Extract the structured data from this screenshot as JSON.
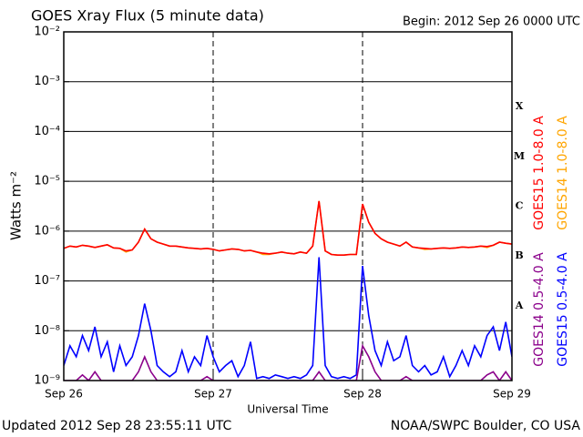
{
  "chart_data": {
    "type": "line",
    "title": "GOES Xray Flux (5 minute data)",
    "subtitle": "Begin:  2012 Sep 26 0000 UTC",
    "x_label": "Universal Time",
    "y_label": "Watts m⁻²",
    "footer_left": "Updated 2012 Sep 28 23:55:11 UTC",
    "footer_right": "NOAA/SWPC Boulder, CO USA",
    "yscale": "log",
    "grid": true,
    "ylim": [
      1e-09,
      0.01
    ],
    "yticks": [
      {
        "value": 1e-09,
        "label": "10⁻⁹"
      },
      {
        "value": 1e-08,
        "label": "10⁻⁸"
      },
      {
        "value": 1e-07,
        "label": "10⁻⁷"
      },
      {
        "value": 1e-06,
        "label": "10⁻⁶"
      },
      {
        "value": 1e-05,
        "label": "10⁻⁵"
      },
      {
        "value": 0.0001,
        "label": "10⁻⁴"
      },
      {
        "value": 0.001,
        "label": "10⁻³"
      },
      {
        "value": 0.01,
        "label": "10⁻²"
      }
    ],
    "xlim": [
      0,
      72
    ],
    "xticks": [
      {
        "value": 0,
        "label": "Sep 26"
      },
      {
        "value": 24,
        "label": "Sep 27"
      },
      {
        "value": 48,
        "label": "Sep 28"
      },
      {
        "value": 72,
        "label": "Sep 29"
      }
    ],
    "flare_classes": [
      {
        "label": "A",
        "value": 1e-08
      },
      {
        "label": "B",
        "value": 1e-07
      },
      {
        "label": "C",
        "value": 1e-06
      },
      {
        "label": "M",
        "value": 1e-05
      },
      {
        "label": "X",
        "value": 0.0001
      }
    ],
    "x": [
      0,
      1,
      2,
      3,
      4,
      5,
      6,
      7,
      8,
      9,
      10,
      11,
      12,
      13,
      14,
      15,
      16,
      17,
      18,
      19,
      20,
      21,
      22,
      23,
      24,
      25,
      26,
      27,
      28,
      29,
      30,
      31,
      32,
      33,
      34,
      35,
      36,
      37,
      38,
      39,
      40,
      41,
      42,
      43,
      44,
      45,
      46,
      47,
      48,
      49,
      50,
      51,
      52,
      53,
      54,
      55,
      56,
      57,
      58,
      59,
      60,
      61,
      62,
      63,
      64,
      65,
      66,
      67,
      68,
      69,
      70,
      71,
      72
    ],
    "series": [
      {
        "name": "GOES14 1.0-8.0 A",
        "color": "#ffa500",
        "legend_group": "long",
        "values": [
          4.5e-07,
          5e-07,
          4.8e-07,
          5.2e-07,
          5e-07,
          4.7e-07,
          5e-07,
          5.3e-07,
          4.6e-07,
          4.5e-07,
          3.8e-07,
          4.2e-07,
          6e-07,
          1.1e-06,
          7e-07,
          6e-07,
          5.5e-07,
          5e-07,
          5e-07,
          4.8e-07,
          4.6e-07,
          4.5e-07,
          4.4e-07,
          4.5e-07,
          4.3e-07,
          4e-07,
          4.2e-07,
          4.4e-07,
          4.3e-07,
          4e-07,
          4.1e-07,
          3.8e-07,
          3.4e-07,
          3.4e-07,
          3.6e-07,
          3.8e-07,
          3.6e-07,
          3.5e-07,
          3.8e-07,
          3.6e-07,
          5e-07,
          4e-06,
          4e-07,
          3.4e-07,
          3.3e-07,
          3.3e-07,
          3.4e-07,
          3.4e-07,
          3.5e-06,
          1.5e-06,
          9e-07,
          7e-07,
          6e-07,
          5.5e-07,
          5e-07,
          6e-07,
          4.8e-07,
          4.6e-07,
          4.3e-07,
          4.4e-07,
          4.5e-07,
          4.6e-07,
          4.5e-07,
          4.6e-07,
          4.8e-07,
          4.7e-07,
          4.8e-07,
          5e-07,
          4.7e-07,
          5.2e-07,
          6e-07,
          5.7e-07,
          5.5e-07
        ]
      },
      {
        "name": "GOES15 1.0-8.0 A",
        "color": "#ff0000",
        "legend_group": "long",
        "values": [
          4.5e-07,
          5e-07,
          4.8e-07,
          5.2e-07,
          5e-07,
          4.7e-07,
          5e-07,
          5.3e-07,
          4.6e-07,
          4.5e-07,
          4e-07,
          4.2e-07,
          6e-07,
          1.1e-06,
          7e-07,
          6e-07,
          5.5e-07,
          5e-07,
          5e-07,
          4.8e-07,
          4.6e-07,
          4.5e-07,
          4.4e-07,
          4.5e-07,
          4.3e-07,
          4e-07,
          4.2e-07,
          4.4e-07,
          4.3e-07,
          4e-07,
          4.1e-07,
          3.8e-07,
          3.6e-07,
          3.5e-07,
          3.6e-07,
          3.8e-07,
          3.6e-07,
          3.5e-07,
          3.8e-07,
          3.6e-07,
          5e-07,
          4e-06,
          4e-07,
          3.4e-07,
          3.3e-07,
          3.3e-07,
          3.4e-07,
          3.4e-07,
          3.5e-06,
          1.5e-06,
          9e-07,
          7e-07,
          6e-07,
          5.5e-07,
          5e-07,
          6e-07,
          4.8e-07,
          4.6e-07,
          4.5e-07,
          4.4e-07,
          4.5e-07,
          4.6e-07,
          4.5e-07,
          4.6e-07,
          4.8e-07,
          4.7e-07,
          4.8e-07,
          5e-07,
          4.9e-07,
          5.2e-07,
          6e-07,
          5.7e-07,
          5.5e-07
        ]
      },
      {
        "name": "GOES15 0.5-4.0 A",
        "color": "#0000ff",
        "legend_group": "short",
        "values": [
          2e-09,
          5e-09,
          3e-09,
          8e-09,
          4e-09,
          1.2e-08,
          3e-09,
          6e-09,
          1.5e-09,
          5e-09,
          2e-09,
          3e-09,
          8e-09,
          3.5e-08,
          1e-08,
          2e-09,
          1.5e-09,
          1.2e-09,
          1.5e-09,
          4e-09,
          1.5e-09,
          3e-09,
          2e-09,
          8e-09,
          3e-09,
          1.5e-09,
          2e-09,
          2.5e-09,
          1.2e-09,
          2e-09,
          6e-09,
          1.1e-09,
          1.2e-09,
          1.1e-09,
          1.3e-09,
          1.2e-09,
          1.1e-09,
          1.2e-09,
          1.1e-09,
          1.3e-09,
          2e-09,
          3e-07,
          2e-09,
          1.2e-09,
          1.1e-09,
          1.2e-09,
          1.1e-09,
          1.3e-09,
          2e-07,
          2e-08,
          4e-09,
          2e-09,
          6e-09,
          2.5e-09,
          3e-09,
          8e-09,
          2e-09,
          1.5e-09,
          2e-09,
          1.3e-09,
          1.5e-09,
          3e-09,
          1.2e-09,
          2e-09,
          4e-09,
          2e-09,
          5e-09,
          3e-09,
          8e-09,
          1.2e-08,
          4e-09,
          1.5e-08,
          3e-09
        ]
      },
      {
        "name": "GOES14 0.5-4.0 A",
        "color": "#8b008b",
        "legend_group": "short",
        "values": [
          1e-09,
          1e-09,
          1e-09,
          1.3e-09,
          1e-09,
          1.5e-09,
          1e-09,
          1e-09,
          1e-09,
          1e-09,
          1e-09,
          1e-09,
          1.5e-09,
          3e-09,
          1.5e-09,
          1e-09,
          1e-09,
          1e-09,
          1e-09,
          1e-09,
          1e-09,
          1e-09,
          1e-09,
          1.2e-09,
          1e-09,
          1e-09,
          1e-09,
          1e-09,
          1e-09,
          1e-09,
          1e-09,
          1e-09,
          1e-09,
          1e-09,
          1e-09,
          1e-09,
          1e-09,
          1e-09,
          1e-09,
          1e-09,
          1e-09,
          1.5e-09,
          1e-09,
          1e-09,
          1e-09,
          1e-09,
          1e-09,
          1e-09,
          5e-09,
          3e-09,
          1.5e-09,
          1e-09,
          1e-09,
          1e-09,
          1e-09,
          1.2e-09,
          1e-09,
          1e-09,
          1e-09,
          1e-09,
          1e-09,
          1e-09,
          1e-09,
          1e-09,
          1e-09,
          1e-09,
          1e-09,
          1e-09,
          1.3e-09,
          1.5e-09,
          1e-09,
          1.5e-09,
          1e-09
        ]
      }
    ]
  }
}
